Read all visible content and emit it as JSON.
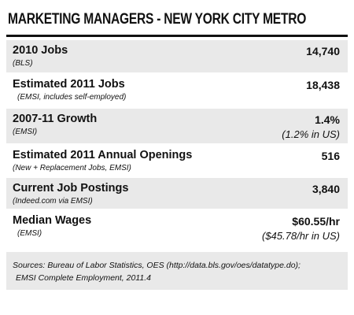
{
  "header": {
    "title": "MARKETING MANAGERS - NEW YORK CITY METRO"
  },
  "table": {
    "rows": [
      {
        "label": "2010 Jobs",
        "source": "(BLS)",
        "value": "14,740"
      },
      {
        "label": "Estimated 2011 Jobs",
        "source": "(EMSI, includes self-employed)",
        "value": "18,438"
      },
      {
        "label": "2007-11 Growth",
        "source": "(EMSI)",
        "value": "1.4%",
        "note": "(1.2% in US)"
      },
      {
        "label": "Estimated 2011 Annual Openings",
        "source": "(New + Replacement Jobs, EMSI)",
        "value": "516"
      },
      {
        "label": "Current Job Postings",
        "source": "(Indeed.com via EMSI)",
        "value": "3,840"
      },
      {
        "label": "Median Wages",
        "source": "(EMSI)",
        "value": "$60.55/hr",
        "note": "($45.78/hr in US)"
      }
    ]
  },
  "footer": {
    "lines": [
      "Sources: Bureau of Labor Statistics, OES (http://data.bls.gov/oes/datatype.do);",
      "EMSI Complete Employment, 2011.4"
    ]
  }
}
